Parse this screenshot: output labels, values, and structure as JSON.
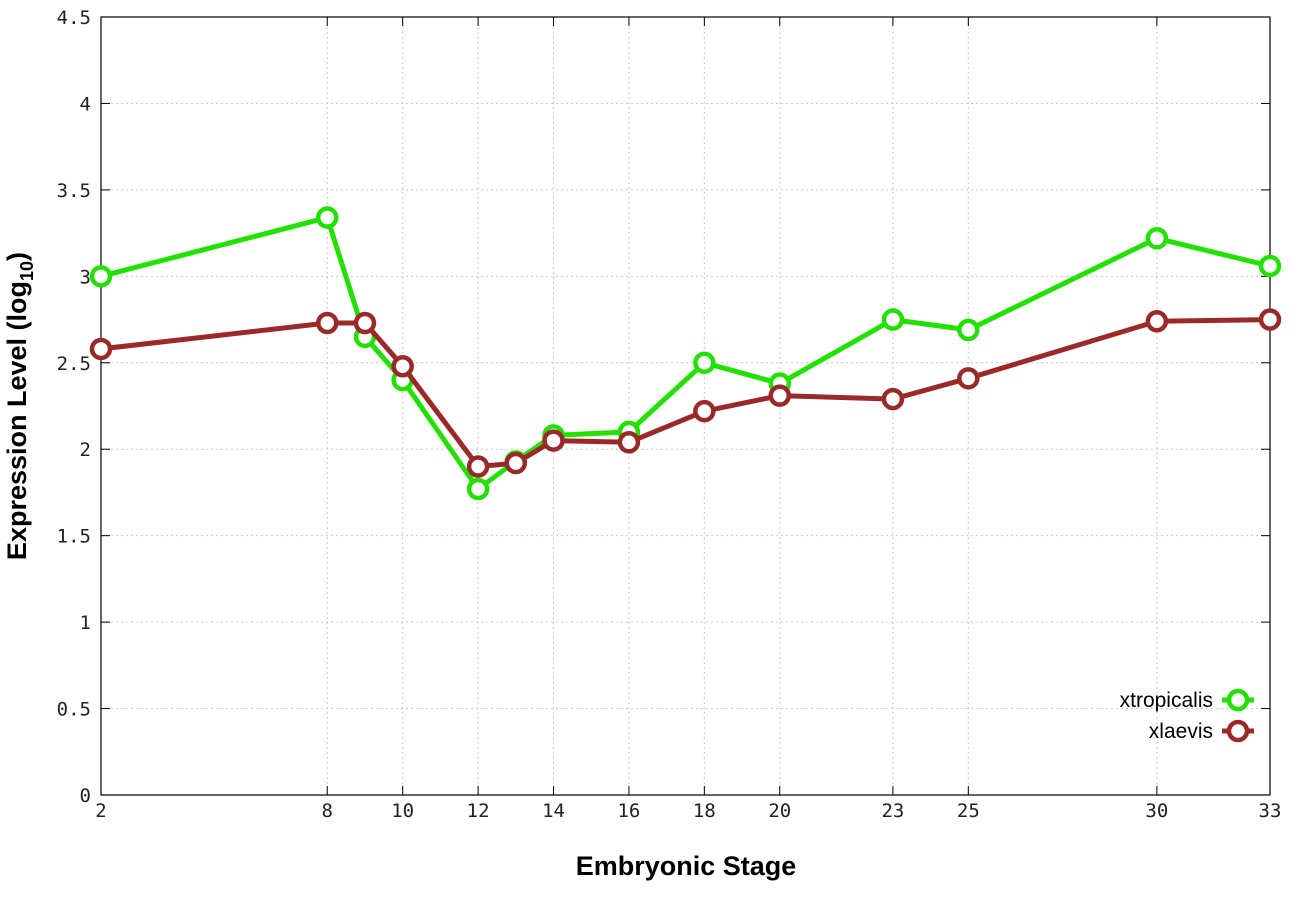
{
  "chart_data": {
    "type": "line",
    "xlabel": "Embryonic Stage",
    "ylabel_main": "Expression Level (log",
    "ylabel_sub": "10",
    "ylabel_close": ")",
    "xlim": [
      2,
      33
    ],
    "ylim": [
      0,
      4.5
    ],
    "x_ticks": [
      2,
      8,
      10,
      12,
      14,
      16,
      18,
      20,
      23,
      25,
      30,
      33
    ],
    "y_ticks": [
      0,
      0.5,
      1,
      1.5,
      2,
      2.5,
      3,
      3.5,
      4,
      4.5
    ],
    "y_tick_labels": [
      "0",
      "0.5",
      "1",
      "1.5",
      "2",
      "2.5",
      "3",
      "3.5",
      "4",
      "4.5"
    ],
    "x": [
      2,
      8,
      9,
      10,
      12,
      13,
      14,
      16,
      18,
      20,
      23,
      25,
      30,
      33
    ],
    "grid": true,
    "legend_position": "bottom-right",
    "series": [
      {
        "name": "xtropicalis",
        "color": "#22e000",
        "values": [
          3.0,
          3.34,
          2.65,
          2.4,
          1.77,
          1.93,
          2.08,
          2.1,
          2.5,
          2.38,
          2.75,
          2.69,
          3.22,
          3.06
        ]
      },
      {
        "name": "xlaevis",
        "color": "#9a2a2a",
        "values": [
          2.58,
          2.73,
          2.73,
          2.48,
          1.9,
          1.92,
          2.05,
          2.04,
          2.22,
          2.31,
          2.29,
          2.41,
          2.74,
          2.75
        ]
      }
    ]
  }
}
